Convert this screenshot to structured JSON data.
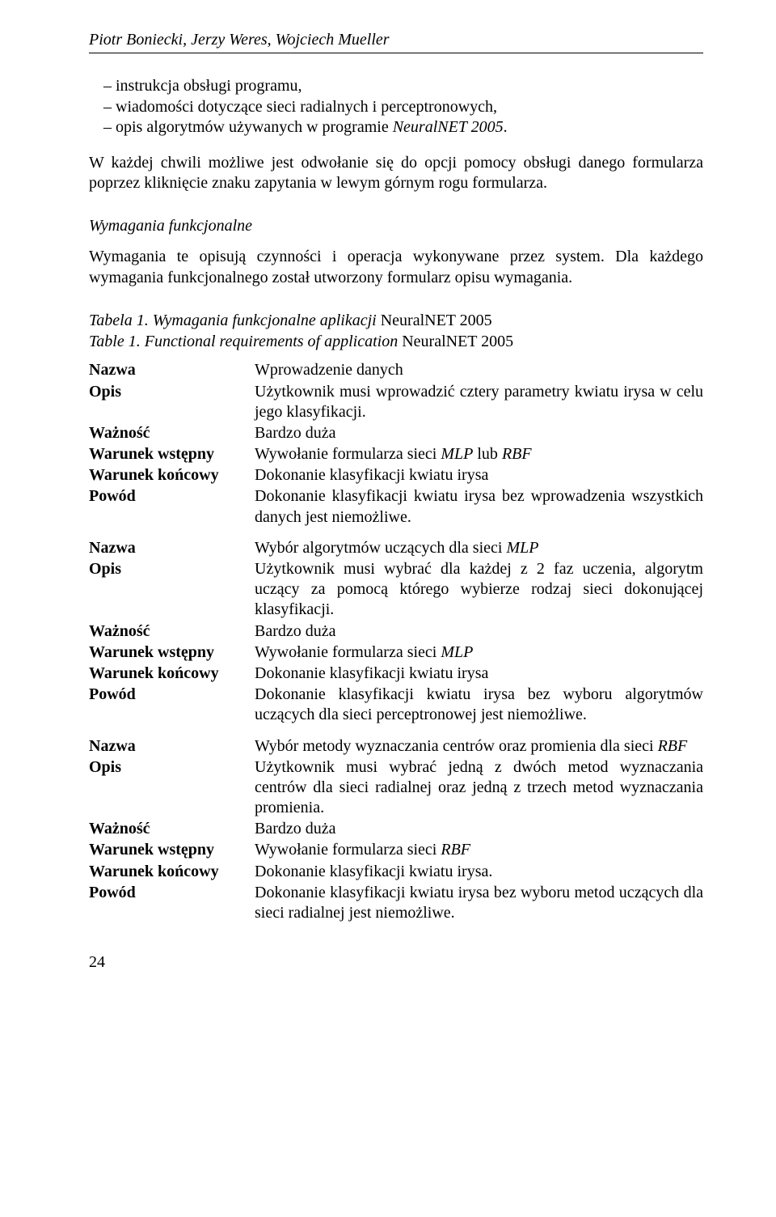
{
  "header": {
    "authors": "Piotr Boniecki, Jerzy Weres, Wojciech Mueller"
  },
  "bullets": [
    "instrukcja obsługi programu,",
    "wiadomości dotyczące sieci radialnych i perceptronowych,",
    "opis algorytmów używanych w programie NeuralNET 2005."
  ],
  "para1": "W każdej chwili możliwe jest odwołanie się do opcji pomocy obsługi danego formularza poprzez kliknięcie znaku zapytania w lewym górnym rogu formularza.",
  "section_heading": "Wymagania funkcjonalne",
  "section_para": "Wymagania te opisują czynności i operacja wykonywane przez system. Dla każdego wymagania funkcjonalnego został utworzony formularz opisu wymagania.",
  "caption": {
    "line1_label": "Tabela 1.",
    "line1_rest": " Wymagania funkcjonalne aplikacji ",
    "line1_ref": "NeuralNET 2005",
    "line2_label": "Table 1.",
    "line2_rest": " Functional requirements of application ",
    "line2_ref": "NeuralNET 2005"
  },
  "labels": {
    "nazwa": "Nazwa",
    "opis": "Opis",
    "waznosc": "Ważność",
    "wstepny": "Warunek wstępny",
    "koncowy": "Warunek końcowy",
    "powod": "Powód"
  },
  "req1": {
    "nazwa": "Wprowadzenie danych",
    "opis": "Użytkownik musi wprowadzić cztery parametry kwiatu irysa w celu jego klasyfikacji.",
    "waznosc": "Bardzo duża",
    "wstepny_prefix": "Wywołanie formularza sieci ",
    "wstepny_ref1": "MLP",
    "wstepny_mid": " lub ",
    "wstepny_ref2": "RBF",
    "koncowy": "Dokonanie klasyfikacji kwiatu irysa",
    "powod": "Dokonanie klasyfikacji kwiatu irysa bez wprowadzenia wszystkich danych jest niemożliwe."
  },
  "req2": {
    "nazwa_prefix": "Wybór algorytmów uczących dla sieci ",
    "nazwa_ref": "MLP",
    "opis": "Użytkownik musi wybrać dla każdej z 2 faz uczenia, algorytm uczący za pomocą którego wybierze rodzaj sieci dokonującej klasyfikacji.",
    "waznosc": "Bardzo duża",
    "wstepny_prefix": "Wywołanie formularza sieci ",
    "wstepny_ref": "MLP",
    "koncowy": "Dokonanie klasyfikacji kwiatu irysa",
    "powod": "Dokonanie klasyfikacji kwiatu irysa bez wyboru algorytmów uczących dla sieci perceptronowej jest niemożliwe."
  },
  "req3": {
    "nazwa_prefix": "Wybór metody wyznaczania centrów oraz promienia dla sieci ",
    "nazwa_ref": "RBF",
    "opis": "Użytkownik musi wybrać jedną z dwóch metod wyznaczania centrów dla sieci radialnej oraz jedną z trzech metod wyznaczania promienia.",
    "waznosc": "Bardzo duża",
    "wstepny_prefix": "Wywołanie formularza sieci ",
    "wstepny_ref": "RBF",
    "koncowy": "Dokonanie klasyfikacji kwiatu irysa.",
    "powod": "Dokonanie klasyfikacji kwiatu irysa bez wyboru metod uczących dla sieci radialnej jest niemożliwe."
  },
  "page_number": "24"
}
